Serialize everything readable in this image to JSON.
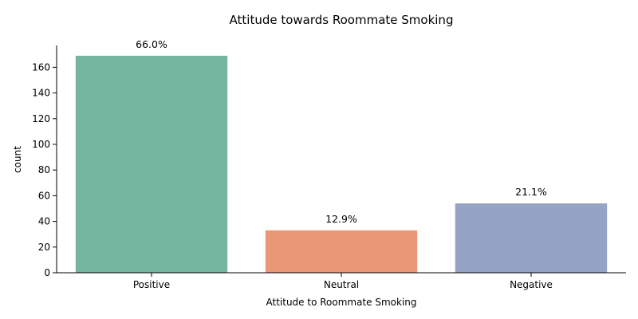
{
  "chart_data": {
    "type": "bar",
    "title": "Attitude towards Roommate Smoking",
    "xlabel": "Attitude to Roommate Smoking",
    "ylabel": "count",
    "categories": [
      "Positive",
      "Neutral",
      "Negative"
    ],
    "values": [
      169,
      33,
      54
    ],
    "data_labels": [
      "66.0%",
      "12.9%",
      "21.1%"
    ],
    "colors": [
      "#73b6a0",
      "#e99877",
      "#95a4c5"
    ],
    "ylim": [
      0,
      177
    ],
    "yticks": [
      0,
      20,
      40,
      60,
      80,
      100,
      120,
      140,
      160
    ],
    "grid": false,
    "legend": "none"
  }
}
